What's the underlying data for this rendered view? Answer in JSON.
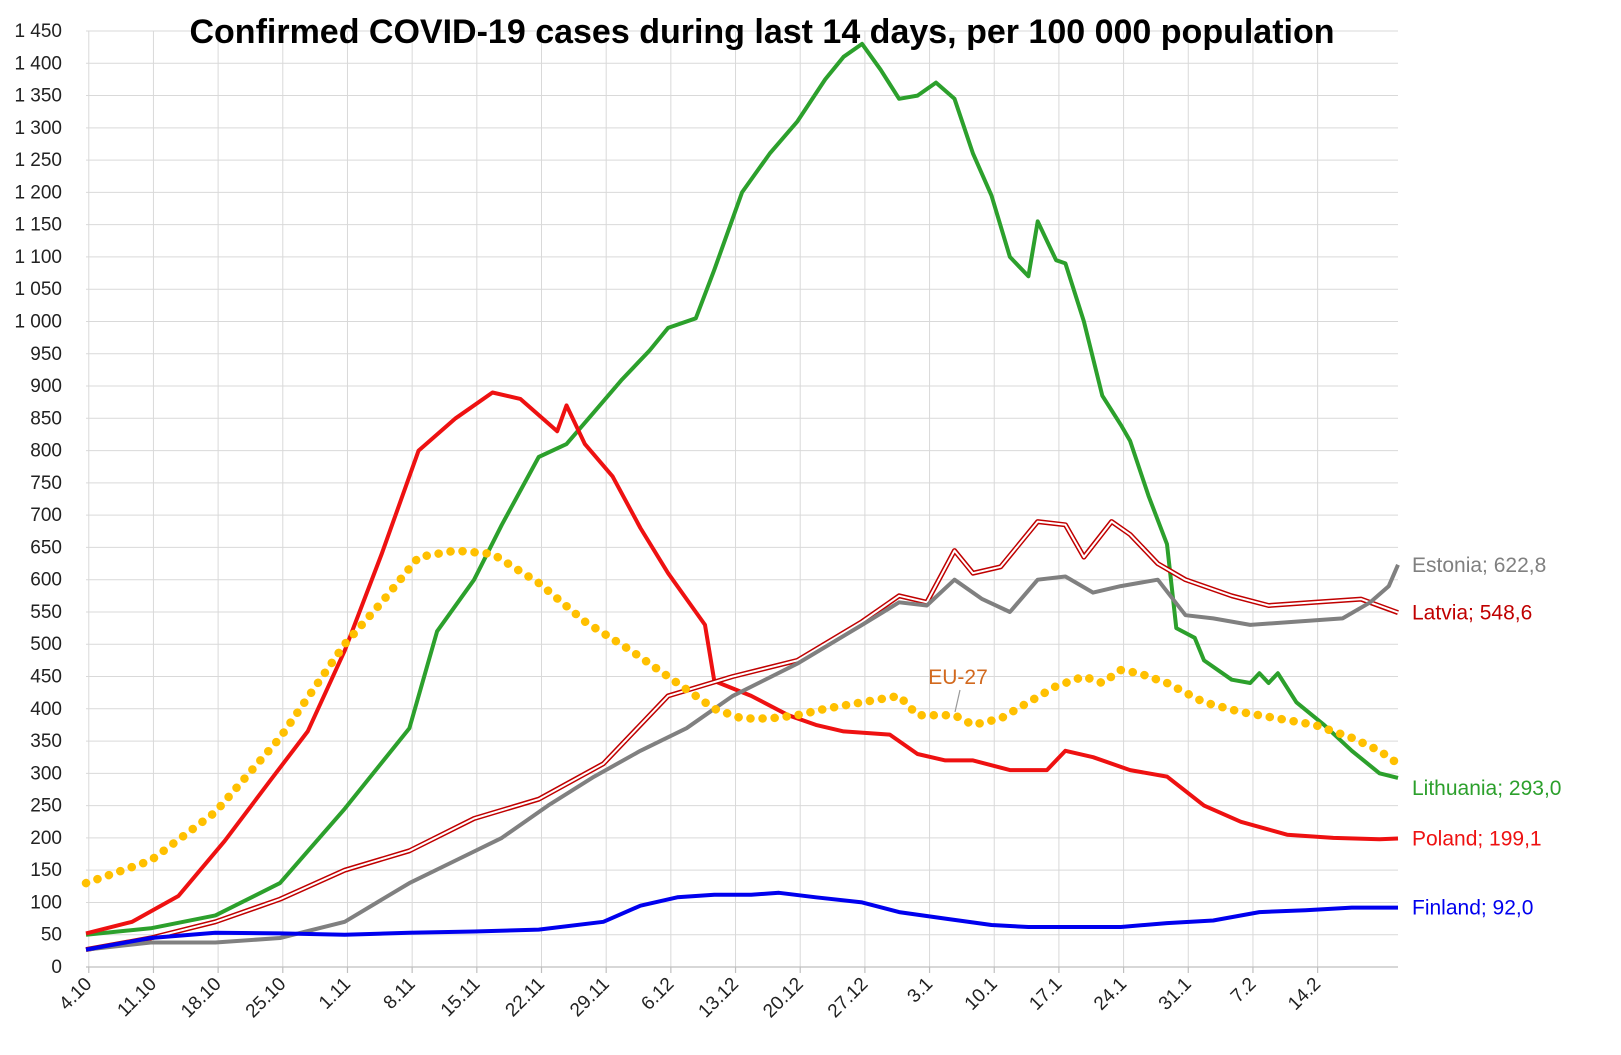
{
  "chart_data": {
    "type": "line",
    "title": "Confirmed COVID-19 cases during last 14 days, per 100 000 population",
    "xlabel": "",
    "ylabel": "",
    "ylim": [
      0,
      1450
    ],
    "yticks": [
      0,
      50,
      100,
      150,
      200,
      250,
      300,
      350,
      400,
      450,
      500,
      550,
      600,
      650,
      700,
      750,
      800,
      850,
      900,
      950,
      1000,
      1050,
      1100,
      1150,
      1200,
      1250,
      1300,
      1350,
      1400,
      1450
    ],
    "ytick_labels": [
      "0",
      "50",
      "100",
      "150",
      "200",
      "250",
      "300",
      "350",
      "400",
      "450",
      "500",
      "550",
      "600",
      "650",
      "700",
      "750",
      "800",
      "850",
      "900",
      "950",
      "1 000",
      "1 050",
      "1 100",
      "1 150",
      "1 200",
      "1 250",
      "1 300",
      "1 350",
      "1 400",
      "1 450"
    ],
    "x_start": "4.10",
    "x_end": "14.2",
    "xtick_labels": [
      "4.10",
      "11.10",
      "18.10",
      "25.10",
      "1.11",
      "8.11",
      "15.11",
      "22.11",
      "29.11",
      "6.12",
      "13.12",
      "20.12",
      "27.12",
      "3.1",
      "10.1",
      "17.1",
      "24.1",
      "31.1",
      "7.2",
      "14.2"
    ],
    "grid": true,
    "legend": "inline labels at line ends",
    "series": [
      {
        "name": "Lithuania",
        "label": "Lithuania; 293,0",
        "color": "#2ca02c",
        "style": "solid",
        "points": [
          [
            0,
            50
          ],
          [
            7,
            60
          ],
          [
            14,
            80
          ],
          [
            21,
            130
          ],
          [
            28,
            245
          ],
          [
            35,
            370
          ],
          [
            38,
            520
          ],
          [
            42,
            600
          ],
          [
            45,
            685
          ],
          [
            49,
            790
          ],
          [
            52,
            810
          ],
          [
            55,
            860
          ],
          [
            58,
            910
          ],
          [
            61,
            955
          ],
          [
            63,
            990
          ],
          [
            66,
            1005
          ],
          [
            68,
            1080
          ],
          [
            71,
            1200
          ],
          [
            74,
            1260
          ],
          [
            77,
            1310
          ],
          [
            80,
            1375
          ],
          [
            82,
            1410
          ],
          [
            84,
            1430
          ],
          [
            86,
            1390
          ],
          [
            88,
            1345
          ],
          [
            90,
            1350
          ],
          [
            92,
            1370
          ],
          [
            94,
            1345
          ],
          [
            96,
            1260
          ],
          [
            98,
            1195
          ],
          [
            100,
            1100
          ],
          [
            102,
            1070
          ],
          [
            103,
            1155
          ],
          [
            105,
            1095
          ],
          [
            106,
            1090
          ],
          [
            108,
            1000
          ],
          [
            110,
            885
          ],
          [
            112,
            840
          ],
          [
            113,
            815
          ],
          [
            115,
            730
          ],
          [
            117,
            655
          ],
          [
            118,
            525
          ],
          [
            120,
            510
          ],
          [
            121,
            475
          ],
          [
            124,
            445
          ],
          [
            126,
            440
          ],
          [
            127,
            455
          ],
          [
            128,
            440
          ],
          [
            129,
            455
          ],
          [
            131,
            410
          ],
          [
            134,
            375
          ],
          [
            137,
            335
          ],
          [
            140,
            300
          ],
          [
            142,
            293
          ]
        ]
      },
      {
        "name": "Poland",
        "label": "Poland; 199,1",
        "color": "#ee1111",
        "style": "solid",
        "points": [
          [
            0,
            52
          ],
          [
            5,
            70
          ],
          [
            10,
            110
          ],
          [
            15,
            195
          ],
          [
            20,
            290
          ],
          [
            24,
            365
          ],
          [
            28,
            490
          ],
          [
            32,
            640
          ],
          [
            36,
            800
          ],
          [
            40,
            850
          ],
          [
            44,
            890
          ],
          [
            47,
            880
          ],
          [
            51,
            830
          ],
          [
            52,
            870
          ],
          [
            54,
            810
          ],
          [
            57,
            760
          ],
          [
            60,
            680
          ],
          [
            63,
            610
          ],
          [
            65,
            570
          ],
          [
            67,
            530
          ],
          [
            68,
            443
          ],
          [
            72,
            420
          ],
          [
            76,
            390
          ],
          [
            79,
            375
          ],
          [
            82,
            365
          ],
          [
            87,
            360
          ],
          [
            90,
            330
          ],
          [
            93,
            320
          ],
          [
            96,
            320
          ],
          [
            100,
            305
          ],
          [
            104,
            305
          ],
          [
            106,
            335
          ],
          [
            109,
            325
          ],
          [
            113,
            305
          ],
          [
            117,
            295
          ],
          [
            121,
            250
          ],
          [
            125,
            225
          ],
          [
            130,
            205
          ],
          [
            135,
            200
          ],
          [
            140,
            198
          ],
          [
            142,
            199
          ]
        ]
      },
      {
        "name": "Latvia",
        "label": "Latvia; 548,6",
        "color": "#c00000",
        "style": "double",
        "points": [
          [
            0,
            27
          ],
          [
            7,
            45
          ],
          [
            14,
            70
          ],
          [
            21,
            105
          ],
          [
            28,
            150
          ],
          [
            35,
            180
          ],
          [
            42,
            230
          ],
          [
            49,
            260
          ],
          [
            56,
            315
          ],
          [
            63,
            420
          ],
          [
            70,
            450
          ],
          [
            77,
            475
          ],
          [
            84,
            535
          ],
          [
            88,
            575
          ],
          [
            91,
            565
          ],
          [
            94,
            645
          ],
          [
            96,
            610
          ],
          [
            99,
            620
          ],
          [
            103,
            690
          ],
          [
            106,
            685
          ],
          [
            108,
            635
          ],
          [
            111,
            690
          ],
          [
            113,
            670
          ],
          [
            116,
            625
          ],
          [
            119,
            600
          ],
          [
            124,
            575
          ],
          [
            128,
            560
          ],
          [
            133,
            565
          ],
          [
            138,
            570
          ],
          [
            142,
            549
          ]
        ]
      },
      {
        "name": "Estonia",
        "label": "Estonia; 622,8",
        "color": "#808080",
        "style": "solid",
        "points": [
          [
            0,
            27
          ],
          [
            7,
            38
          ],
          [
            14,
            38
          ],
          [
            21,
            45
          ],
          [
            28,
            70
          ],
          [
            35,
            130
          ],
          [
            40,
            165
          ],
          [
            45,
            200
          ],
          [
            50,
            250
          ],
          [
            55,
            295
          ],
          [
            60,
            335
          ],
          [
            65,
            370
          ],
          [
            70,
            420
          ],
          [
            77,
            470
          ],
          [
            84,
            530
          ],
          [
            88,
            565
          ],
          [
            91,
            560
          ],
          [
            94,
            600
          ],
          [
            97,
            570
          ],
          [
            100,
            550
          ],
          [
            103,
            600
          ],
          [
            106,
            605
          ],
          [
            109,
            580
          ],
          [
            112,
            590
          ],
          [
            114,
            595
          ],
          [
            116,
            600
          ],
          [
            119,
            545
          ],
          [
            122,
            540
          ],
          [
            126,
            530
          ],
          [
            131,
            535
          ],
          [
            136,
            540
          ],
          [
            139,
            565
          ],
          [
            141,
            590
          ],
          [
            142,
            623
          ]
        ]
      },
      {
        "name": "EU-27",
        "label": "EU-27",
        "color": "#ffc000",
        "style": "dotted",
        "points": [
          [
            0,
            130
          ],
          [
            7,
            165
          ],
          [
            14,
            240
          ],
          [
            21,
            355
          ],
          [
            28,
            500
          ],
          [
            32,
            565
          ],
          [
            36,
            635
          ],
          [
            40,
            645
          ],
          [
            44,
            640
          ],
          [
            49,
            595
          ],
          [
            54,
            535
          ],
          [
            59,
            490
          ],
          [
            64,
            440
          ],
          [
            68,
            400
          ],
          [
            71,
            385
          ],
          [
            74,
            385
          ],
          [
            77,
            390
          ],
          [
            80,
            400
          ],
          [
            84,
            410
          ],
          [
            88,
            420
          ],
          [
            90,
            390
          ],
          [
            94,
            390
          ],
          [
            96,
            375
          ],
          [
            99,
            385
          ],
          [
            102,
            410
          ],
          [
            105,
            435
          ],
          [
            108,
            450
          ],
          [
            110,
            440
          ],
          [
            112,
            460
          ],
          [
            114,
            455
          ],
          [
            117,
            440
          ],
          [
            121,
            410
          ],
          [
            125,
            395
          ],
          [
            129,
            385
          ],
          [
            133,
            375
          ],
          [
            137,
            355
          ],
          [
            140,
            335
          ],
          [
            142,
            315
          ]
        ]
      },
      {
        "name": "Finland",
        "label": "Finland; 92,0",
        "color": "#0000ee",
        "style": "solid",
        "points": [
          [
            0,
            27
          ],
          [
            7,
            45
          ],
          [
            14,
            53
          ],
          [
            21,
            52
          ],
          [
            28,
            50
          ],
          [
            35,
            53
          ],
          [
            42,
            55
          ],
          [
            49,
            58
          ],
          [
            56,
            70
          ],
          [
            60,
            95
          ],
          [
            64,
            108
          ],
          [
            68,
            112
          ],
          [
            72,
            112
          ],
          [
            75,
            115
          ],
          [
            79,
            108
          ],
          [
            84,
            100
          ],
          [
            88,
            85
          ],
          [
            93,
            75
          ],
          [
            98,
            65
          ],
          [
            102,
            62
          ],
          [
            107,
            62
          ],
          [
            112,
            62
          ],
          [
            117,
            68
          ],
          [
            122,
            72
          ],
          [
            127,
            85
          ],
          [
            132,
            88
          ],
          [
            137,
            92
          ],
          [
            142,
            92
          ]
        ]
      }
    ],
    "annotations": [
      {
        "text": "EU-27",
        "color": "#d2691e"
      }
    ]
  }
}
